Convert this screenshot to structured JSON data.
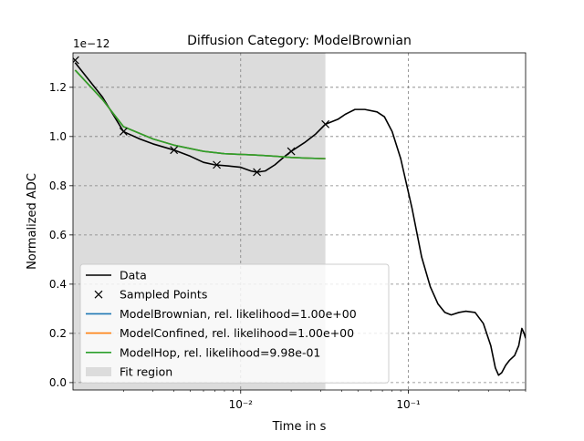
{
  "chart_data": {
    "type": "line",
    "title": "Diffusion Category: ModelBrownian",
    "xlabel": "Time in s",
    "ylabel": "Normalized ADC",
    "y_multiplier": "1e−12",
    "x_scale": "log",
    "xlim": [
      0.001,
      0.5
    ],
    "ylim": [
      -0.03,
      1.34
    ],
    "x_ticks": [
      {
        "value": 0.01,
        "label": "10⁻²"
      },
      {
        "value": 0.1,
        "label": "10⁻¹"
      }
    ],
    "y_ticks": [
      {
        "value": 0.0,
        "label": "0.0"
      },
      {
        "value": 0.2,
        "label": "0.2"
      },
      {
        "value": 0.4,
        "label": "0.4"
      },
      {
        "value": 0.6,
        "label": "0.6"
      },
      {
        "value": 0.8,
        "label": "0.8"
      },
      {
        "value": 1.0,
        "label": "1.0"
      },
      {
        "value": 1.2,
        "label": "1.2"
      }
    ],
    "grid": true,
    "fit_region": {
      "x_start": 0.001,
      "x_end": 0.032
    },
    "series": [
      {
        "name": "Data",
        "color": "#000000",
        "points": [
          [
            0.00103,
            1.3
          ],
          [
            0.0015,
            1.16
          ],
          [
            0.002,
            1.02
          ],
          [
            0.0025,
            0.99
          ],
          [
            0.003,
            0.97
          ],
          [
            0.004,
            0.945
          ],
          [
            0.005,
            0.92
          ],
          [
            0.006,
            0.895
          ],
          [
            0.007,
            0.885
          ],
          [
            0.0085,
            0.88
          ],
          [
            0.01,
            0.875
          ],
          [
            0.0115,
            0.86
          ],
          [
            0.0125,
            0.855
          ],
          [
            0.014,
            0.86
          ],
          [
            0.016,
            0.885
          ],
          [
            0.018,
            0.915
          ],
          [
            0.02,
            0.94
          ],
          [
            0.024,
            0.975
          ],
          [
            0.028,
            1.01
          ],
          [
            0.032,
            1.05
          ],
          [
            0.038,
            1.07
          ],
          [
            0.042,
            1.09
          ],
          [
            0.048,
            1.11
          ],
          [
            0.055,
            1.11
          ],
          [
            0.065,
            1.1
          ],
          [
            0.072,
            1.08
          ],
          [
            0.08,
            1.02
          ],
          [
            0.09,
            0.91
          ],
          [
            0.105,
            0.71
          ],
          [
            0.12,
            0.51
          ],
          [
            0.135,
            0.39
          ],
          [
            0.15,
            0.32
          ],
          [
            0.165,
            0.285
          ],
          [
            0.18,
            0.275
          ],
          [
            0.2,
            0.285
          ],
          [
            0.22,
            0.29
          ],
          [
            0.25,
            0.285
          ],
          [
            0.28,
            0.24
          ],
          [
            0.31,
            0.15
          ],
          [
            0.33,
            0.06
          ],
          [
            0.345,
            0.03
          ],
          [
            0.36,
            0.04
          ],
          [
            0.38,
            0.07
          ],
          [
            0.4,
            0.09
          ],
          [
            0.43,
            0.11
          ],
          [
            0.455,
            0.15
          ],
          [
            0.475,
            0.22
          ],
          [
            0.49,
            0.2
          ],
          [
            0.5,
            0.18
          ]
        ]
      },
      {
        "name": "Sampled Points",
        "color": "#000000",
        "marker": "x",
        "points": [
          [
            0.00103,
            1.31
          ],
          [
            0.002,
            1.02
          ],
          [
            0.004,
            0.945
          ],
          [
            0.0072,
            0.885
          ],
          [
            0.0125,
            0.855
          ],
          [
            0.02,
            0.94
          ],
          [
            0.032,
            1.05
          ]
        ]
      },
      {
        "name": "ModelBrownian, rel. likelihood=1.00e+00",
        "color": "#1f77b4",
        "points": [
          [
            0.00103,
            1.27
          ],
          [
            0.0015,
            1.15
          ],
          [
            0.002,
            1.04
          ],
          [
            0.003,
            0.99
          ],
          [
            0.004,
            0.965
          ],
          [
            0.006,
            0.94
          ],
          [
            0.008,
            0.93
          ],
          [
            0.012,
            0.925
          ],
          [
            0.016,
            0.92
          ],
          [
            0.02,
            0.915
          ],
          [
            0.025,
            0.912
          ],
          [
            0.032,
            0.91
          ]
        ]
      },
      {
        "name": "ModelConfined, rel. likelihood=1.00e+00",
        "color": "#ff7f0e",
        "points": [
          [
            0.00103,
            1.27
          ],
          [
            0.0015,
            1.15
          ],
          [
            0.002,
            1.04
          ],
          [
            0.003,
            0.99
          ],
          [
            0.004,
            0.965
          ],
          [
            0.006,
            0.94
          ],
          [
            0.008,
            0.93
          ],
          [
            0.012,
            0.925
          ],
          [
            0.016,
            0.92
          ],
          [
            0.02,
            0.915
          ],
          [
            0.025,
            0.912
          ],
          [
            0.032,
            0.91
          ]
        ]
      },
      {
        "name": "ModelHop, rel. likelihood=9.98e-01",
        "color": "#2ca02c",
        "points": [
          [
            0.00103,
            1.27
          ],
          [
            0.0015,
            1.15
          ],
          [
            0.002,
            1.04
          ],
          [
            0.003,
            0.99
          ],
          [
            0.004,
            0.965
          ],
          [
            0.006,
            0.94
          ],
          [
            0.008,
            0.93
          ],
          [
            0.012,
            0.925
          ],
          [
            0.016,
            0.92
          ],
          [
            0.02,
            0.915
          ],
          [
            0.025,
            0.912
          ],
          [
            0.032,
            0.91
          ]
        ]
      }
    ],
    "legend": {
      "placement": "lower-left",
      "entries": [
        {
          "label": "Data",
          "kind": "line",
          "color": "#000000"
        },
        {
          "label": "Sampled Points",
          "kind": "x",
          "color": "#000000"
        },
        {
          "label": "ModelBrownian, rel. likelihood=1.00e+00",
          "kind": "line",
          "color": "#1f77b4"
        },
        {
          "label": "ModelConfined, rel. likelihood=1.00e+00",
          "kind": "line",
          "color": "#ff7f0e"
        },
        {
          "label": "ModelHop, rel. likelihood=9.98e-01",
          "kind": "line",
          "color": "#2ca02c"
        },
        {
          "label": "Fit region",
          "kind": "patch",
          "color": "#dcdcdc"
        }
      ]
    }
  }
}
